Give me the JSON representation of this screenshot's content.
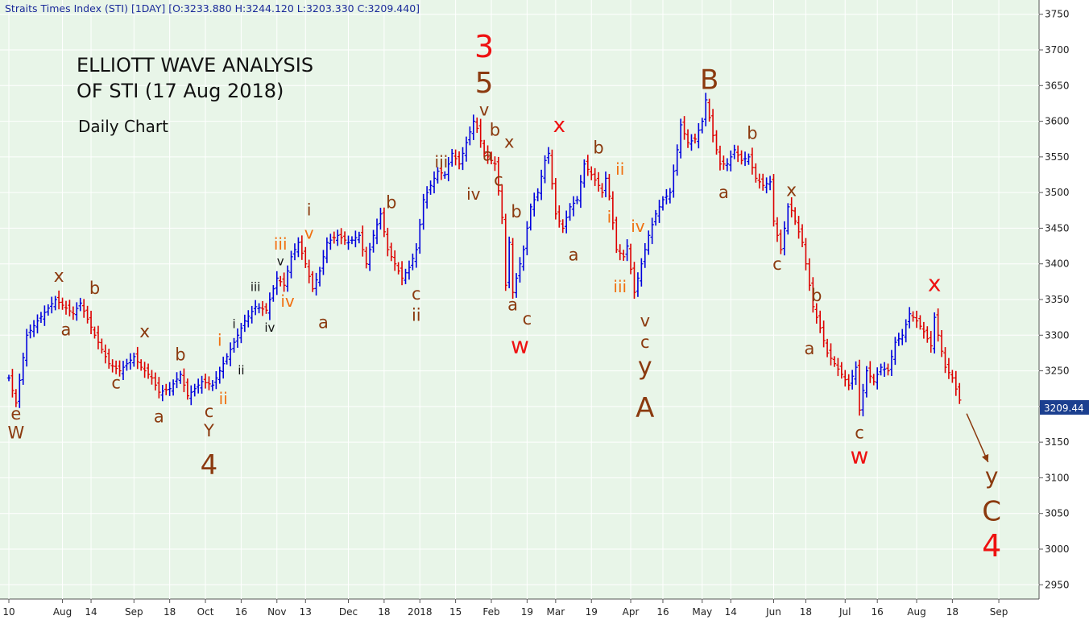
{
  "header": "Straits Times Index (STI) [1DAY] [O:3233.880 H:3244.120 L:3203.330 C:3209.440]",
  "overlay": {
    "title_line1": "ELLIOTT WAVE ANALYSIS",
    "title_line2": "OF STI (17 Aug 2018)",
    "subtitle": "Daily Chart"
  },
  "last_price_label": "3209.44",
  "colors": {
    "background": "#e8f5e8",
    "up_bar": "#0000dd",
    "down_bar": "#dd0000",
    "label_brown": "#8b3a0f",
    "label_red": "#ee1111",
    "label_orange": "#f07010",
    "label_black": "#111111",
    "price_badge": "#1b3f8f"
  },
  "chart_data": {
    "type": "ohlc-bar",
    "ylim": [
      2930,
      3770
    ],
    "y_ticks": [
      2950,
      3000,
      3050,
      3100,
      3150,
      3200,
      3250,
      3300,
      3350,
      3400,
      3450,
      3500,
      3550,
      3600,
      3650,
      3700,
      3750
    ],
    "x_ticks": [
      {
        "label": "10",
        "idx": 0
      },
      {
        "label": "Aug",
        "idx": 15
      },
      {
        "label": "14",
        "idx": 23
      },
      {
        "label": "Sep",
        "idx": 35
      },
      {
        "label": "18",
        "idx": 45
      },
      {
        "label": "Oct",
        "idx": 55
      },
      {
        "label": "16",
        "idx": 65
      },
      {
        "label": "Nov",
        "idx": 75
      },
      {
        "label": "13",
        "idx": 83
      },
      {
        "label": "Dec",
        "idx": 95
      },
      {
        "label": "18",
        "idx": 105
      },
      {
        "label": "2018",
        "idx": 115
      },
      {
        "label": "15",
        "idx": 125
      },
      {
        "label": "Feb",
        "idx": 135
      },
      {
        "label": "19",
        "idx": 145
      },
      {
        "label": "Mar",
        "idx": 153
      },
      {
        "label": "19",
        "idx": 163
      },
      {
        "label": "Apr",
        "idx": 174
      },
      {
        "label": "16",
        "idx": 183
      },
      {
        "label": "May",
        "idx": 194
      },
      {
        "label": "14",
        "idx": 202
      },
      {
        "label": "Jun",
        "idx": 214
      },
      {
        "label": "18",
        "idx": 223
      },
      {
        "label": "Jul",
        "idx": 234
      },
      {
        "label": "16",
        "idx": 243
      },
      {
        "label": "Aug",
        "idx": 254
      },
      {
        "label": "18",
        "idx": 264
      },
      {
        "label": "Sep",
        "idx": 277
      }
    ],
    "anchors": [
      [
        0,
        3240
      ],
      [
        2,
        3205
      ],
      [
        5,
        3300
      ],
      [
        8,
        3320
      ],
      [
        13,
        3350
      ],
      [
        18,
        3330
      ],
      [
        20,
        3345
      ],
      [
        24,
        3300
      ],
      [
        28,
        3260
      ],
      [
        31,
        3250
      ],
      [
        35,
        3270
      ],
      [
        37,
        3255
      ],
      [
        40,
        3240
      ],
      [
        42,
        3220
      ],
      [
        45,
        3225
      ],
      [
        48,
        3245
      ],
      [
        50,
        3215
      ],
      [
        54,
        3235
      ],
      [
        57,
        3230
      ],
      [
        60,
        3260
      ],
      [
        63,
        3290
      ],
      [
        66,
        3320
      ],
      [
        69,
        3340
      ],
      [
        72,
        3335
      ],
      [
        75,
        3380
      ],
      [
        77,
        3370
      ],
      [
        79,
        3410
      ],
      [
        81,
        3430
      ],
      [
        83,
        3400
      ],
      [
        85,
        3365
      ],
      [
        87,
        3390
      ],
      [
        89,
        3430
      ],
      [
        92,
        3440
      ],
      [
        95,
        3430
      ],
      [
        98,
        3440
      ],
      [
        100,
        3400
      ],
      [
        102,
        3440
      ],
      [
        104,
        3470
      ],
      [
        106,
        3420
      ],
      [
        108,
        3400
      ],
      [
        110,
        3380
      ],
      [
        112,
        3395
      ],
      [
        114,
        3420
      ],
      [
        116,
        3490
      ],
      [
        118,
        3510
      ],
      [
        120,
        3530
      ],
      [
        122,
        3525
      ],
      [
        124,
        3555
      ],
      [
        126,
        3540
      ],
      [
        128,
        3570
      ],
      [
        130,
        3600
      ],
      [
        131,
        3590
      ],
      [
        133,
        3555
      ],
      [
        135,
        3545
      ],
      [
        136,
        3540
      ],
      [
        138,
        3465
      ],
      [
        139,
        3370
      ],
      [
        140,
        3430
      ],
      [
        141,
        3360
      ],
      [
        142,
        3380
      ],
      [
        144,
        3420
      ],
      [
        146,
        3480
      ],
      [
        148,
        3500
      ],
      [
        150,
        3545
      ],
      [
        151,
        3555
      ],
      [
        153,
        3470
      ],
      [
        155,
        3450
      ],
      [
        157,
        3480
      ],
      [
        159,
        3490
      ],
      [
        161,
        3540
      ],
      [
        163,
        3525
      ],
      [
        165,
        3510
      ],
      [
        166,
        3500
      ],
      [
        167,
        3520
      ],
      [
        168,
        3495
      ],
      [
        170,
        3420
      ],
      [
        172,
        3410
      ],
      [
        173,
        3425
      ],
      [
        175,
        3360
      ],
      [
        177,
        3400
      ],
      [
        179,
        3440
      ],
      [
        181,
        3470
      ],
      [
        183,
        3490
      ],
      [
        185,
        3500
      ],
      [
        187,
        3560
      ],
      [
        188,
        3595
      ],
      [
        190,
        3570
      ],
      [
        192,
        3575
      ],
      [
        194,
        3600
      ],
      [
        195,
        3630
      ],
      [
        197,
        3580
      ],
      [
        199,
        3540
      ],
      [
        201,
        3540
      ],
      [
        203,
        3560
      ],
      [
        205,
        3545
      ],
      [
        207,
        3550
      ],
      [
        209,
        3520
      ],
      [
        211,
        3510
      ],
      [
        213,
        3515
      ],
      [
        214,
        3460
      ],
      [
        216,
        3420
      ],
      [
        218,
        3480
      ],
      [
        219,
        3475
      ],
      [
        220,
        3460
      ],
      [
        222,
        3430
      ],
      [
        224,
        3370
      ],
      [
        225,
        3340
      ],
      [
        227,
        3310
      ],
      [
        229,
        3275
      ],
      [
        231,
        3260
      ],
      [
        233,
        3245
      ],
      [
        235,
        3230
      ],
      [
        237,
        3255
      ],
      [
        238,
        3195
      ],
      [
        240,
        3250
      ],
      [
        242,
        3235
      ],
      [
        244,
        3255
      ],
      [
        246,
        3250
      ],
      [
        248,
        3290
      ],
      [
        250,
        3300
      ],
      [
        252,
        3330
      ],
      [
        254,
        3320
      ],
      [
        256,
        3305
      ],
      [
        258,
        3285
      ],
      [
        259,
        3325
      ],
      [
        260,
        3300
      ],
      [
        262,
        3255
      ],
      [
        264,
        3240
      ],
      [
        266,
        3209
      ]
    ],
    "wave_labels": [
      {
        "t": "e",
        "i": 2,
        "p": 3182,
        "c": "label_brown",
        "s": 21
      },
      {
        "t": "W",
        "i": 2,
        "p": 3155,
        "c": "label_brown",
        "s": 21
      },
      {
        "t": "x",
        "i": 14,
        "p": 3375,
        "c": "label_brown",
        "s": 22
      },
      {
        "t": "a",
        "i": 16,
        "p": 3300,
        "c": "label_brown",
        "s": 21
      },
      {
        "t": "b",
        "i": 24,
        "p": 3358,
        "c": "label_brown",
        "s": 21
      },
      {
        "t": "c",
        "i": 30,
        "p": 3225,
        "c": "label_brown",
        "s": 21
      },
      {
        "t": "x",
        "i": 38,
        "p": 3297,
        "c": "label_brown",
        "s": 22
      },
      {
        "t": "a",
        "i": 42,
        "p": 3178,
        "c": "label_brown",
        "s": 21
      },
      {
        "t": "b",
        "i": 48,
        "p": 3265,
        "c": "label_brown",
        "s": 21
      },
      {
        "t": "c",
        "i": 56,
        "p": 3185,
        "c": "label_brown",
        "s": 21
      },
      {
        "t": "Y",
        "i": 56,
        "p": 3158,
        "c": "label_brown",
        "s": 21
      },
      {
        "t": "4",
        "i": 56,
        "p": 3105,
        "c": "label_brown",
        "s": 34
      },
      {
        "t": "i",
        "i": 59,
        "p": 3285,
        "c": "label_orange",
        "s": 20
      },
      {
        "t": "ii",
        "i": 60,
        "p": 3203,
        "c": "label_orange",
        "s": 20
      },
      {
        "t": "i",
        "i": 63,
        "p": 3310,
        "c": "label_black",
        "s": 15
      },
      {
        "t": "ii",
        "i": 65,
        "p": 3245,
        "c": "label_black",
        "s": 15
      },
      {
        "t": "iii",
        "i": 69,
        "p": 3362,
        "c": "label_black",
        "s": 15
      },
      {
        "t": "iv",
        "i": 73,
        "p": 3305,
        "c": "label_black",
        "s": 15
      },
      {
        "t": "v",
        "i": 76,
        "p": 3398,
        "c": "label_black",
        "s": 15
      },
      {
        "t": "iii",
        "i": 76,
        "p": 3420,
        "c": "label_orange",
        "s": 20
      },
      {
        "t": "iv",
        "i": 78,
        "p": 3340,
        "c": "label_orange",
        "s": 20
      },
      {
        "t": "i",
        "i": 84,
        "p": 3468,
        "c": "label_brown",
        "s": 20
      },
      {
        "t": "v",
        "i": 84,
        "p": 3435,
        "c": "label_orange",
        "s": 20
      },
      {
        "t": "a",
        "i": 88,
        "p": 3310,
        "c": "label_brown",
        "s": 21
      },
      {
        "t": "b",
        "i": 107,
        "p": 3478,
        "c": "label_brown",
        "s": 21
      },
      {
        "t": "c",
        "i": 114,
        "p": 3350,
        "c": "label_brown",
        "s": 21
      },
      {
        "t": "ii",
        "i": 114,
        "p": 3320,
        "c": "label_brown",
        "s": 21
      },
      {
        "t": "iii",
        "i": 121,
        "p": 3535,
        "c": "label_brown",
        "s": 20
      },
      {
        "t": "iv",
        "i": 130,
        "p": 3490,
        "c": "label_brown",
        "s": 20
      },
      {
        "t": "3",
        "i": 133,
        "p": 3690,
        "c": "label_red",
        "s": 38
      },
      {
        "t": "5",
        "i": 133,
        "p": 3640,
        "c": "label_brown",
        "s": 36
      },
      {
        "t": "v",
        "i": 133,
        "p": 3608,
        "c": "label_brown",
        "s": 21
      },
      {
        "t": "b",
        "i": 136,
        "p": 3580,
        "c": "label_brown",
        "s": 21
      },
      {
        "t": "a",
        "i": 134,
        "p": 3545,
        "c": "label_brown",
        "s": 21
      },
      {
        "t": "x",
        "i": 140,
        "p": 3563,
        "c": "label_brown",
        "s": 21
      },
      {
        "t": "c",
        "i": 137,
        "p": 3510,
        "c": "label_brown",
        "s": 21
      },
      {
        "t": "b",
        "i": 142,
        "p": 3465,
        "c": "label_brown",
        "s": 21
      },
      {
        "t": "a",
        "i": 141,
        "p": 3335,
        "c": "label_brown",
        "s": 21
      },
      {
        "t": "c",
        "i": 145,
        "p": 3315,
        "c": "label_brown",
        "s": 21
      },
      {
        "t": "w",
        "i": 143,
        "p": 3275,
        "c": "label_red",
        "s": 28
      },
      {
        "t": "x",
        "i": 154,
        "p": 3585,
        "c": "label_red",
        "s": 26
      },
      {
        "t": "a",
        "i": 158,
        "p": 3405,
        "c": "label_brown",
        "s": 21
      },
      {
        "t": "b",
        "i": 165,
        "p": 3555,
        "c": "label_brown",
        "s": 21
      },
      {
        "t": "ii",
        "i": 171,
        "p": 3525,
        "c": "label_orange",
        "s": 20
      },
      {
        "t": "i",
        "i": 168,
        "p": 3458,
        "c": "label_orange",
        "s": 20
      },
      {
        "t": "iv",
        "i": 176,
        "p": 3445,
        "c": "label_orange",
        "s": 20
      },
      {
        "t": "iii",
        "i": 171,
        "p": 3360,
        "c": "label_orange",
        "s": 20
      },
      {
        "t": "v",
        "i": 178,
        "p": 3312,
        "c": "label_brown",
        "s": 21
      },
      {
        "t": "c",
        "i": 178,
        "p": 3282,
        "c": "label_brown",
        "s": 21
      },
      {
        "t": "y",
        "i": 178,
        "p": 3245,
        "c": "label_brown",
        "s": 30
      },
      {
        "t": "A",
        "i": 178,
        "p": 3185,
        "c": "label_brown",
        "s": 34
      },
      {
        "t": "B",
        "i": 196,
        "p": 3645,
        "c": "label_brown",
        "s": 34
      },
      {
        "t": "a",
        "i": 200,
        "p": 3492,
        "c": "label_brown",
        "s": 21
      },
      {
        "t": "b",
        "i": 208,
        "p": 3575,
        "c": "label_brown",
        "s": 21
      },
      {
        "t": "x",
        "i": 219,
        "p": 3495,
        "c": "label_brown",
        "s": 22
      },
      {
        "t": "c",
        "i": 215,
        "p": 3392,
        "c": "label_brown",
        "s": 21
      },
      {
        "t": "b",
        "i": 226,
        "p": 3348,
        "c": "label_brown",
        "s": 21
      },
      {
        "t": "a",
        "i": 224,
        "p": 3273,
        "c": "label_brown",
        "s": 21
      },
      {
        "t": "c",
        "i": 238,
        "p": 3155,
        "c": "label_brown",
        "s": 21
      },
      {
        "t": "w",
        "i": 238,
        "p": 3120,
        "c": "label_red",
        "s": 28
      },
      {
        "t": "x",
        "i": 259,
        "p": 3362,
        "c": "label_red",
        "s": 28
      },
      {
        "t": "y",
        "i": 275,
        "p": 3092,
        "c": "label_brown",
        "s": 28
      },
      {
        "t": "C",
        "i": 275,
        "p": 3040,
        "c": "label_brown",
        "s": 34
      },
      {
        "t": "4",
        "i": 275,
        "p": 2990,
        "c": "label_red",
        "s": 38
      }
    ],
    "projection": {
      "from": {
        "i": 268,
        "p": 3190
      },
      "to": {
        "i": 274,
        "p": 3122
      }
    }
  }
}
